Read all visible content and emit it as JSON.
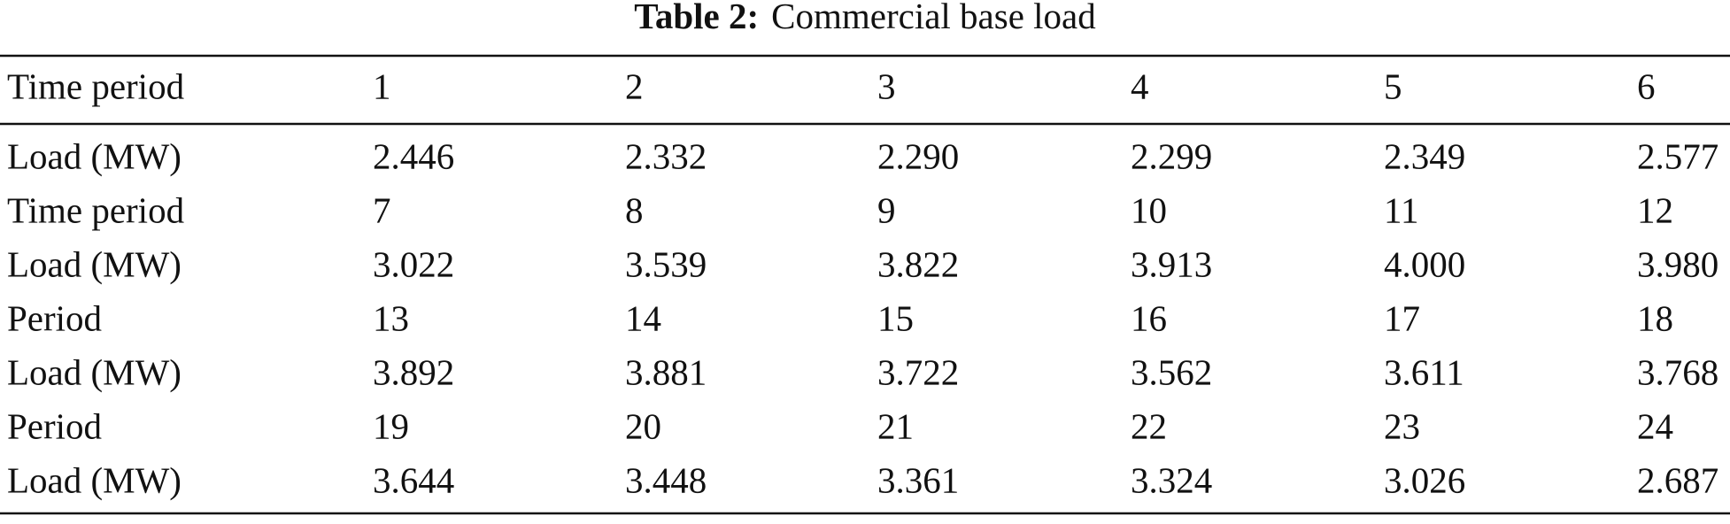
{
  "title": {
    "label": "Table 2:",
    "text": "Commercial base load"
  },
  "table": {
    "header": [
      "Time period",
      "1",
      "2",
      "3",
      "4",
      "5",
      "6"
    ],
    "rows": [
      [
        "Load (MW)",
        "2.446",
        "2.332",
        "2.290",
        "2.299",
        "2.349",
        "2.577"
      ],
      [
        "Time period",
        "7",
        "8",
        "9",
        "10",
        "11",
        "12"
      ],
      [
        "Load (MW)",
        "3.022",
        "3.539",
        "3.822",
        "3.913",
        "4.000",
        "3.980"
      ],
      [
        "Period",
        "13",
        "14",
        "15",
        "16",
        "17",
        "18"
      ],
      [
        "Load (MW)",
        "3.892",
        "3.881",
        "3.722",
        "3.562",
        "3.611",
        "3.768"
      ],
      [
        "Period",
        "19",
        "20",
        "21",
        "22",
        "23",
        "24"
      ],
      [
        "Load (MW)",
        "3.644",
        "3.448",
        "3.361",
        "3.324",
        "3.026",
        "2.687"
      ]
    ]
  }
}
